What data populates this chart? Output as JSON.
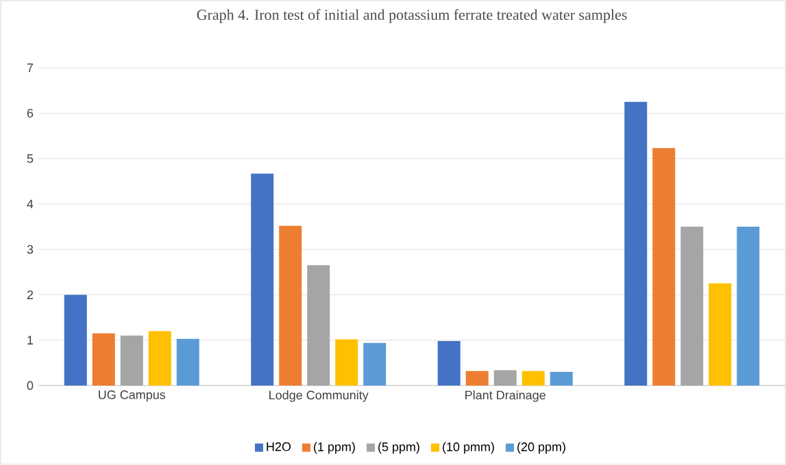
{
  "chart_data": {
    "type": "bar",
    "title": "Graph 4. Iron test of initial and potassium ferrate treated water samples",
    "categories": [
      "UG Campus",
      "Lodge Community",
      "Plant Drainage",
      null
    ],
    "series": [
      {
        "name": "H2O",
        "color": "#4472c4",
        "values": [
          2.0,
          4.67,
          0.98,
          6.25
        ]
      },
      {
        "name": "(1 ppm)",
        "color": "#ed7d31",
        "values": [
          1.15,
          3.52,
          0.32,
          5.23
        ]
      },
      {
        "name": "(5 ppm)",
        "color": "#a5a5a5",
        "values": [
          1.1,
          2.65,
          0.34,
          3.5
        ]
      },
      {
        "name": "(10 pmm)",
        "color": "#ffc000",
        "values": [
          1.2,
          1.02,
          0.32,
          2.25
        ]
      },
      {
        "name": "(20 ppm)",
        "color": "#5b9bd5",
        "values": [
          1.03,
          0.94,
          0.3,
          3.5
        ]
      }
    ],
    "ylim": [
      0,
      7
    ],
    "yticks": [
      0,
      1,
      2,
      3,
      4,
      5,
      6,
      7
    ],
    "grid": "y",
    "legend": "bottom"
  }
}
